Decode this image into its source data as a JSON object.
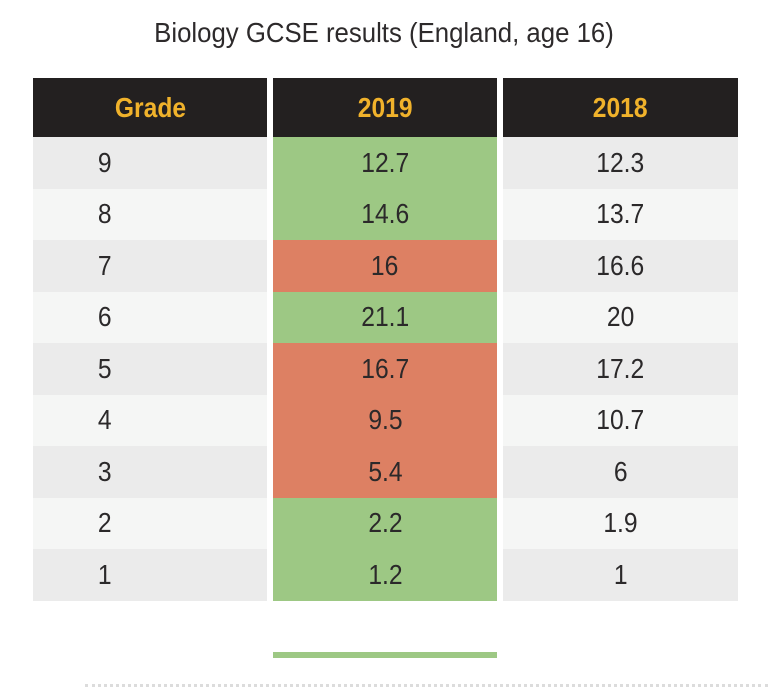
{
  "colors": {
    "header_bg": "#232020",
    "header_text": "#f0b22b",
    "green": "#9dc884",
    "red": "#dd8063",
    "row_dark": "#ebebeb",
    "row_light": "#f5f6f5",
    "body_text": "#2b292a",
    "title_text": "#2d2a2b"
  },
  "chart_data": {
    "type": "table",
    "title": "Biology GCSE results (England, age 16)",
    "columns": [
      "Grade",
      "2019",
      "2018"
    ],
    "rows": [
      {
        "grade": "9",
        "y2019": "12.7",
        "y2018": "12.3",
        "highlight_2019": "green"
      },
      {
        "grade": "8",
        "y2019": "14.6",
        "y2018": "13.7",
        "highlight_2019": "green"
      },
      {
        "grade": "7",
        "y2019": "16",
        "y2018": "16.6",
        "highlight_2019": "red"
      },
      {
        "grade": "6",
        "y2019": "21.1",
        "y2018": "20",
        "highlight_2019": "green"
      },
      {
        "grade": "5",
        "y2019": "16.7",
        "y2018": "17.2",
        "highlight_2019": "red"
      },
      {
        "grade": "4",
        "y2019": "9.5",
        "y2018": "10.7",
        "highlight_2019": "red"
      },
      {
        "grade": "3",
        "y2019": "5.4",
        "y2018": "6",
        "highlight_2019": "red"
      },
      {
        "grade": "2",
        "y2019": "2.2",
        "y2018": "1.9",
        "highlight_2019": "green"
      },
      {
        "grade": "1",
        "y2019": "1.2",
        "y2018": "1",
        "highlight_2019": "green"
      }
    ]
  }
}
